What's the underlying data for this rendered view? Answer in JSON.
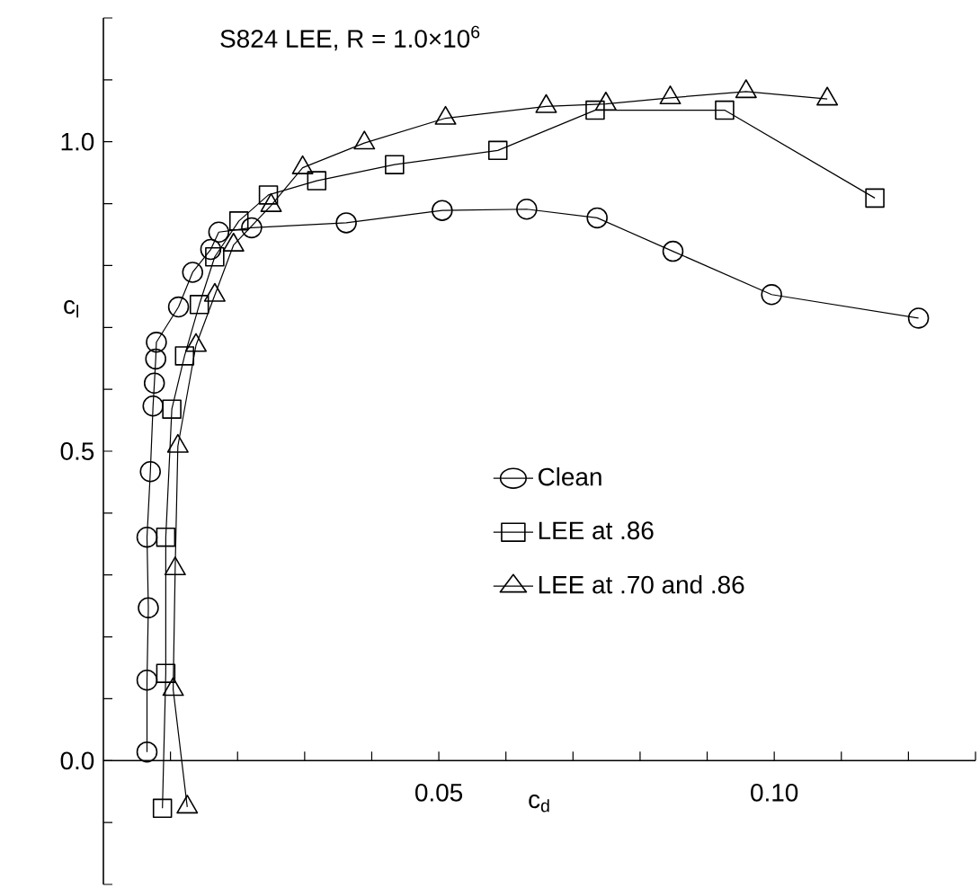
{
  "chart_data": {
    "type": "line",
    "title": "S824 LEE, R = 1.0×10$^{6}$",
    "xlabel": "c$_{d}$",
    "ylabel": "c$_{l}$",
    "xlim": [
      0,
      0.13
    ],
    "ylim": [
      -0.2,
      1.2
    ],
    "xticks": [
      {
        "value": 0.01,
        "label": null
      },
      {
        "value": 0.02,
        "label": null
      },
      {
        "value": 0.03,
        "label": null
      },
      {
        "value": 0.04,
        "label": null
      },
      {
        "value": 0.05,
        "label": "0.05"
      },
      {
        "value": 0.06,
        "label": null
      },
      {
        "value": 0.07,
        "label": null
      },
      {
        "value": 0.08,
        "label": null
      },
      {
        "value": 0.09,
        "label": null
      },
      {
        "value": 0.1,
        "label": "0.10"
      },
      {
        "value": 0.11,
        "label": null
      },
      {
        "value": 0.12,
        "label": null
      },
      {
        "value": 0.13,
        "label": null
      }
    ],
    "yticks": [
      {
        "value": -0.2,
        "label": null
      },
      {
        "value": -0.1,
        "label": null
      },
      {
        "value": 0,
        "label": "0.0"
      },
      {
        "value": 0.1,
        "label": null
      },
      {
        "value": 0.2,
        "label": null
      },
      {
        "value": 0.3,
        "label": null
      },
      {
        "value": 0.4,
        "label": null
      },
      {
        "value": 0.5,
        "label": "0.5"
      },
      {
        "value": 0.6,
        "label": null
      },
      {
        "value": 0.7,
        "label": null
      },
      {
        "value": 0.8,
        "label": null
      },
      {
        "value": 0.9,
        "label": null
      },
      {
        "value": 1.0,
        "label": "1.0"
      },
      {
        "value": 1.1,
        "label": null
      },
      {
        "value": 1.2,
        "label": null
      }
    ],
    "legend": "right",
    "series": [
      {
        "name": "Clean",
        "color": "#000000",
        "marker": "circle",
        "x": [
          0.0065,
          0.0065,
          0.0067,
          0.0065,
          0.007,
          0.0074,
          0.0076,
          0.0078,
          0.0079,
          0.0112,
          0.0133,
          0.016,
          0.0172,
          0.0221,
          0.0362,
          0.0505,
          0.0631,
          0.0736,
          0.0849,
          0.0996,
          0.1215
        ],
        "values": [
          0.014,
          0.13,
          0.247,
          0.361,
          0.467,
          0.573,
          0.61,
          0.649,
          0.676,
          0.733,
          0.789,
          0.826,
          0.854,
          0.861,
          0.869,
          0.889,
          0.891,
          0.877,
          0.823,
          0.753,
          0.715
        ]
      },
      {
        "name": "LEE at .86",
        "color": "#000000",
        "marker": "square",
        "x": [
          0.0088,
          0.0093,
          0.0093,
          0.0102,
          0.0121,
          0.0143,
          0.0166,
          0.0202,
          0.0246,
          0.0318,
          0.0434,
          0.0588,
          0.0733,
          0.0926,
          0.115
        ],
        "values": [
          -0.077,
          0.141,
          0.361,
          0.568,
          0.654,
          0.737,
          0.814,
          0.872,
          0.914,
          0.937,
          0.963,
          0.986,
          1.051,
          1.051,
          0.909
        ]
      },
      {
        "name": "LEE at .70 and .86",
        "color": "#000000",
        "marker": "triangle",
        "x": [
          0.0125,
          0.0104,
          0.0107,
          0.0111,
          0.0138,
          0.0166,
          0.0194,
          0.025,
          0.0297,
          0.0389,
          0.051,
          0.066,
          0.0749,
          0.0845,
          0.0958,
          0.1079
        ],
        "values": [
          -0.075,
          0.115,
          0.31,
          0.508,
          0.671,
          0.752,
          0.833,
          0.897,
          0.958,
          0.998,
          1.038,
          1.057,
          1.061,
          1.071,
          1.081,
          1.069
        ]
      }
    ]
  }
}
